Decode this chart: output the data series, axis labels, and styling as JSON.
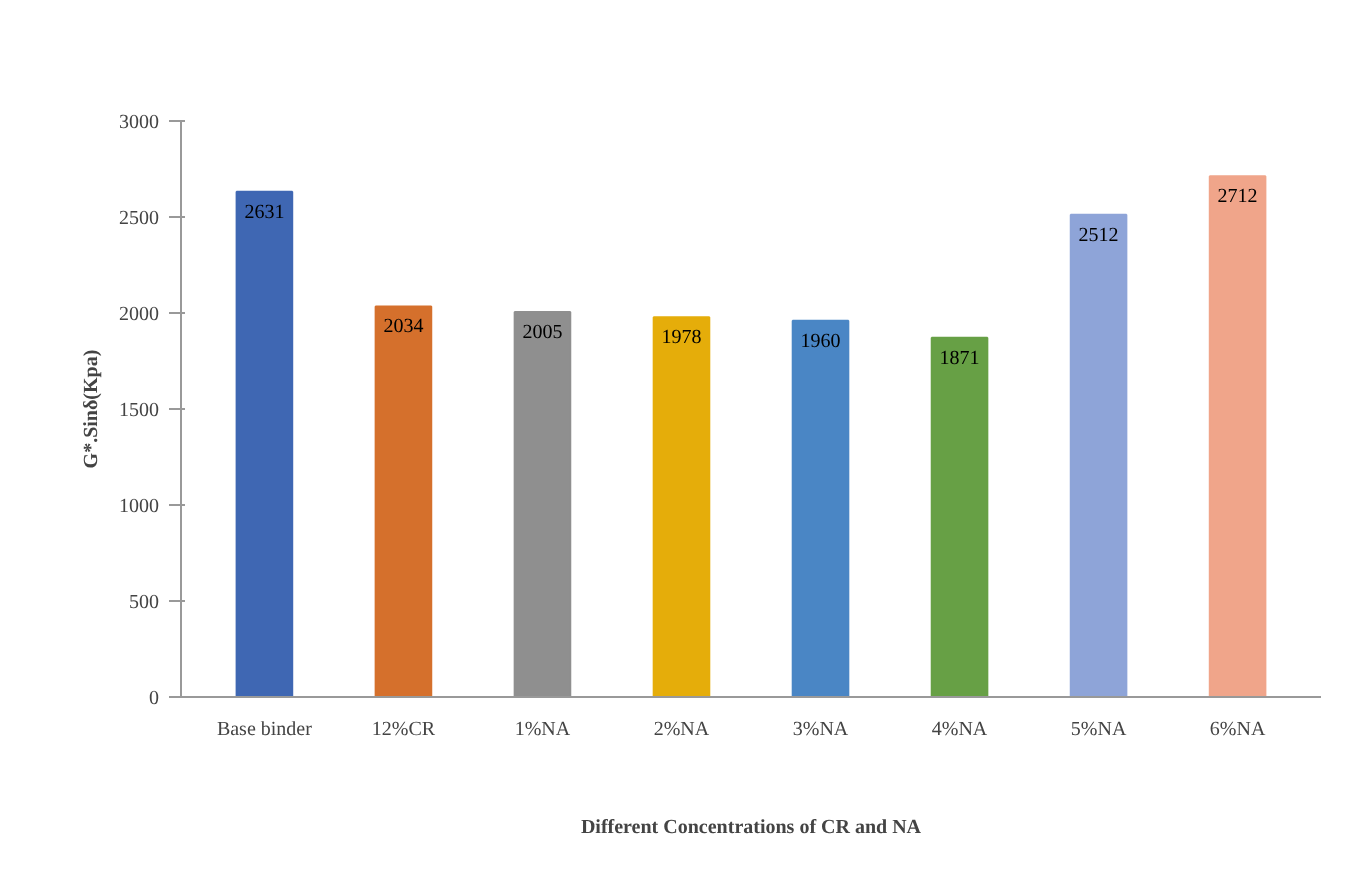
{
  "chart_data": {
    "type": "bar",
    "xlabel": "Different Concentrations of CR and NA",
    "ylabel": "G*.Sinδ(Kpa)",
    "categories": [
      "Base binder",
      "12%CR",
      "1%NA",
      "2%NA",
      "3%NA",
      "4%NA",
      "5%NA",
      "6%NA"
    ],
    "values": [
      2631,
      2034,
      2005,
      1978,
      1960,
      1871,
      2512,
      2712
    ],
    "colors": [
      "#3f67b3",
      "#d5702c",
      "#8f8f8f",
      "#e5ad0a",
      "#4a86c5",
      "#67a045",
      "#8ea4d8",
      "#f0a58a"
    ],
    "ylim": [
      0,
      3000
    ],
    "yticks": [
      0,
      500,
      1000,
      1500,
      2000,
      2500,
      3000
    ],
    "grid": false,
    "data_labels": true
  }
}
